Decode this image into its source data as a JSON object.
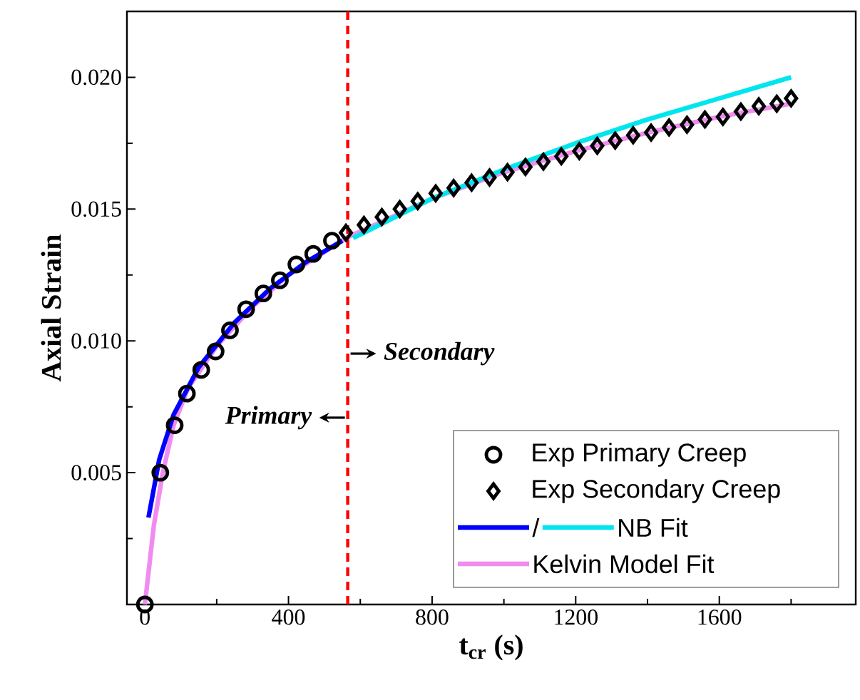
{
  "chart_data": {
    "type": "scatter",
    "xlabel": "t$_{cr}$ (s)",
    "ylabel": "Axial Strain",
    "xlim": [
      -50,
      1980
    ],
    "ylim": [
      0,
      0.0225
    ],
    "xticks": [
      0,
      {
        "value": 200,
        "label": null
      },
      400,
      {
        "value": 600,
        "label": null
      },
      800,
      {
        "value": 1000,
        "label": null
      },
      1200,
      {
        "value": 1400,
        "label": null
      },
      1600,
      {
        "value": 1800,
        "label": null
      }
    ],
    "yticks": [
      {
        "value": 0.0025,
        "label": null
      },
      {
        "value": 0.005,
        "label": "0.005"
      },
      {
        "value": 0.0075,
        "label": null
      },
      {
        "value": 0.01,
        "label": "0.010"
      },
      {
        "value": 0.0125,
        "label": null
      },
      {
        "value": 0.015,
        "label": "0.015"
      },
      {
        "value": 0.0175,
        "label": null
      },
      {
        "value": 0.02,
        "label": "0.020"
      }
    ],
    "legend": "bottom right",
    "ref_lines": [
      {
        "axis": "x",
        "value": 565,
        "color": "#ff0000",
        "line_style": "dashed"
      }
    ],
    "annotations": [
      "Primary",
      "Secondary"
    ],
    "series": [
      {
        "name": "Exp Primary Creep",
        "marker": "circle",
        "color": "#000000",
        "x": [
          0,
          43,
          83,
          117,
          157,
          197,
          237,
          282,
          330,
          376,
          422,
          469,
          521
        ],
        "values": [
          0.0,
          0.005,
          0.0068,
          0.008,
          0.0089,
          0.0096,
          0.0104,
          0.0112,
          0.0118,
          0.0123,
          0.0129,
          0.0133,
          0.0138
        ]
      },
      {
        "name": "Exp Secondary Creep",
        "marker": "diamond",
        "color": "#000000",
        "x": [
          560,
          610,
          660,
          710,
          760,
          810,
          860,
          910,
          960,
          1010,
          1060,
          1110,
          1160,
          1210,
          1260,
          1310,
          1360,
          1410,
          1460,
          1510,
          1560,
          1610,
          1660,
          1710,
          1760,
          1800
        ],
        "values": [
          0.0141,
          0.0144,
          0.0147,
          0.015,
          0.0153,
          0.0156,
          0.0158,
          0.016,
          0.0162,
          0.0164,
          0.0166,
          0.0168,
          0.017,
          0.0172,
          0.0174,
          0.0176,
          0.0178,
          0.0179,
          0.0181,
          0.0182,
          0.0184,
          0.0185,
          0.0187,
          0.0189,
          0.019,
          0.0192
        ]
      },
      {
        "name": "/",
        "type": "line",
        "color": "#0000ff",
        "x": [
          10,
          40,
          80,
          150,
          250,
          350,
          450,
          550
        ],
        "values": [
          0.0033,
          0.0055,
          0.0072,
          0.009,
          0.0107,
          0.012,
          0.013,
          0.0138
        ]
      },
      {
        "name": "NB Fit",
        "type": "line",
        "color": "#00e5ee",
        "x": [
          580,
          800,
          1000,
          1200,
          1400,
          1600,
          1800
        ],
        "values": [
          0.0139,
          0.0154,
          0.0165,
          0.0175,
          0.0184,
          0.0192,
          0.02
        ]
      },
      {
        "name": "Kelvin Model Fit",
        "type": "line",
        "color": "#f08cf0",
        "x": [
          0,
          10,
          25,
          50,
          80,
          120,
          200,
          300,
          400,
          560,
          800,
          1000,
          1200,
          1400,
          1600,
          1800
        ],
        "values": [
          0.0,
          0.0012,
          0.003,
          0.005,
          0.0068,
          0.0082,
          0.0098,
          0.0113,
          0.0125,
          0.0139,
          0.0154,
          0.0164,
          0.0172,
          0.0179,
          0.0185,
          0.019
        ]
      }
    ]
  }
}
